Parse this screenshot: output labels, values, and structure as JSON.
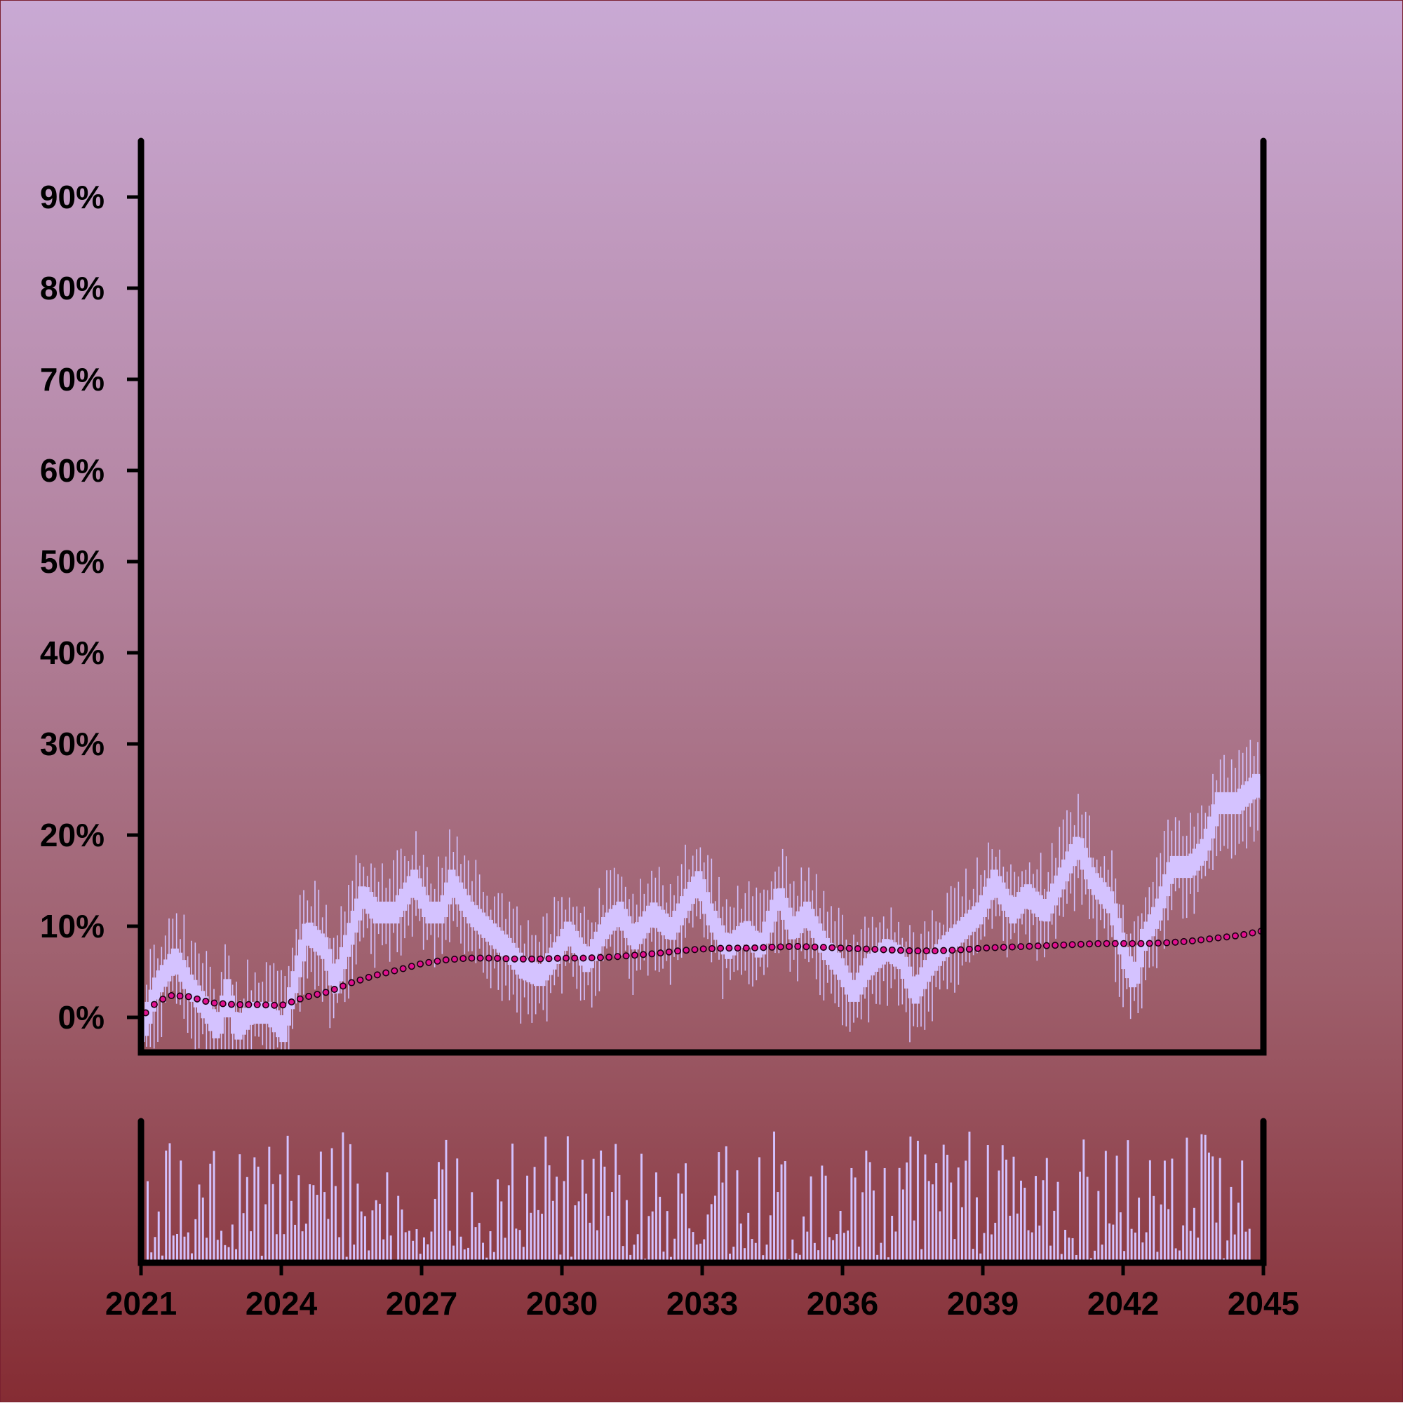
{
  "chart_data": {
    "type": "candlestick",
    "title": "",
    "xlabel": "",
    "ylabel": "",
    "x_range": [
      2021,
      2045
    ],
    "x_ticks": [
      "2021",
      "2024",
      "2027",
      "2030",
      "2033",
      "2036",
      "2039",
      "2042",
      "2045"
    ],
    "ylim": [
      -4,
      96
    ],
    "y_ticks": [
      "0%",
      "10%",
      "20%",
      "30%",
      "40%",
      "50%",
      "60%",
      "70%",
      "80%",
      "90%"
    ],
    "grid": false,
    "legend": "none",
    "series": [
      {
        "kind": "ohlc",
        "color": "#d4c2ff",
        "close_path": [
          [
            2021.0,
            -1.5
          ],
          [
            2021.3,
            3.5
          ],
          [
            2021.7,
            6.5
          ],
          [
            2022.0,
            3.5
          ],
          [
            2022.4,
            0.5
          ],
          [
            2022.6,
            -1.5
          ],
          [
            2022.8,
            3.0
          ],
          [
            2023.0,
            -1.5
          ],
          [
            2023.3,
            0.5
          ],
          [
            2023.7,
            0.5
          ],
          [
            2024.0,
            -1.5
          ],
          [
            2024.2,
            3.0
          ],
          [
            2024.5,
            9.5
          ],
          [
            2024.9,
            7.5
          ],
          [
            2025.1,
            3.5
          ],
          [
            2025.4,
            8.5
          ],
          [
            2025.7,
            13.5
          ],
          [
            2026.0,
            11.5
          ],
          [
            2026.4,
            11.5
          ],
          [
            2026.8,
            15.0
          ],
          [
            2027.1,
            11.5
          ],
          [
            2027.4,
            11.5
          ],
          [
            2027.6,
            15.0
          ],
          [
            2028.0,
            11.5
          ],
          [
            2028.4,
            9.5
          ],
          [
            2028.8,
            7.5
          ],
          [
            2029.1,
            5.5
          ],
          [
            2029.5,
            4.5
          ],
          [
            2029.9,
            7.5
          ],
          [
            2030.1,
            9.5
          ],
          [
            2030.5,
            6.0
          ],
          [
            2030.9,
            10.0
          ],
          [
            2031.2,
            11.5
          ],
          [
            2031.5,
            8.5
          ],
          [
            2031.9,
            11.5
          ],
          [
            2032.3,
            9.5
          ],
          [
            2032.7,
            13.5
          ],
          [
            2032.9,
            15.0
          ],
          [
            2033.1,
            11.5
          ],
          [
            2033.5,
            7.5
          ],
          [
            2033.9,
            9.5
          ],
          [
            2034.2,
            7.5
          ],
          [
            2034.6,
            13.5
          ],
          [
            2034.9,
            9.5
          ],
          [
            2035.2,
            11.5
          ],
          [
            2035.6,
            7.5
          ],
          [
            2035.9,
            5.5
          ],
          [
            2036.2,
            2.5
          ],
          [
            2036.5,
            5.5
          ],
          [
            2036.9,
            7.5
          ],
          [
            2037.2,
            6.5
          ],
          [
            2037.5,
            2.5
          ],
          [
            2037.8,
            5.5
          ],
          [
            2038.1,
            7.5
          ],
          [
            2038.5,
            9.5
          ],
          [
            2038.9,
            11.5
          ],
          [
            2039.2,
            15.0
          ],
          [
            2039.6,
            11.5
          ],
          [
            2039.9,
            13.5
          ],
          [
            2040.3,
            11.5
          ],
          [
            2040.8,
            17.0
          ],
          [
            2041.0,
            19.0
          ],
          [
            2041.3,
            15.0
          ],
          [
            2041.7,
            12.5
          ],
          [
            2042.0,
            6.5
          ],
          [
            2042.2,
            4.0
          ],
          [
            2042.4,
            8.5
          ],
          [
            2042.7,
            11.5
          ],
          [
            2043.0,
            16.5
          ],
          [
            2043.4,
            16.5
          ],
          [
            2043.7,
            18.5
          ],
          [
            2044.0,
            23.5
          ],
          [
            2044.4,
            23.5
          ],
          [
            2044.8,
            25.5
          ],
          [
            2045.0,
            25.0
          ]
        ]
      },
      {
        "kind": "line_markers",
        "color": "#e0108f",
        "points": [
          [
            2021.0,
            0.0
          ],
          [
            2021.3,
            1.5
          ],
          [
            2021.6,
            2.4
          ],
          [
            2022.0,
            2.3
          ],
          [
            2022.5,
            1.6
          ],
          [
            2023.0,
            1.4
          ],
          [
            2023.5,
            1.4
          ],
          [
            2024.0,
            1.3
          ],
          [
            2024.5,
            2.2
          ],
          [
            2025.0,
            2.8
          ],
          [
            2025.5,
            3.8
          ],
          [
            2026.0,
            4.6
          ],
          [
            2026.5,
            5.2
          ],
          [
            2027.0,
            5.9
          ],
          [
            2027.5,
            6.3
          ],
          [
            2028.0,
            6.5
          ],
          [
            2028.5,
            6.5
          ],
          [
            2029.0,
            6.4
          ],
          [
            2029.5,
            6.4
          ],
          [
            2030.0,
            6.5
          ],
          [
            2030.5,
            6.5
          ],
          [
            2031.0,
            6.6
          ],
          [
            2031.5,
            6.8
          ],
          [
            2032.0,
            7.0
          ],
          [
            2032.5,
            7.3
          ],
          [
            2033.0,
            7.5
          ],
          [
            2033.5,
            7.6
          ],
          [
            2034.0,
            7.6
          ],
          [
            2034.5,
            7.7
          ],
          [
            2035.0,
            7.8
          ],
          [
            2035.5,
            7.7
          ],
          [
            2036.0,
            7.6
          ],
          [
            2036.5,
            7.5
          ],
          [
            2037.0,
            7.4
          ],
          [
            2037.5,
            7.3
          ],
          [
            2038.0,
            7.3
          ],
          [
            2038.5,
            7.4
          ],
          [
            2039.0,
            7.6
          ],
          [
            2039.5,
            7.7
          ],
          [
            2040.0,
            7.8
          ],
          [
            2040.5,
            7.9
          ],
          [
            2041.0,
            8.0
          ],
          [
            2041.5,
            8.1
          ],
          [
            2042.0,
            8.1
          ],
          [
            2042.5,
            8.1
          ],
          [
            2043.0,
            8.2
          ],
          [
            2043.5,
            8.4
          ],
          [
            2044.0,
            8.7
          ],
          [
            2044.5,
            9.0
          ],
          [
            2045.0,
            9.5
          ]
        ]
      },
      {
        "kind": "volume_bars",
        "color": "#d4c2ff",
        "relative_range": [
          0,
          1
        ]
      }
    ]
  }
}
